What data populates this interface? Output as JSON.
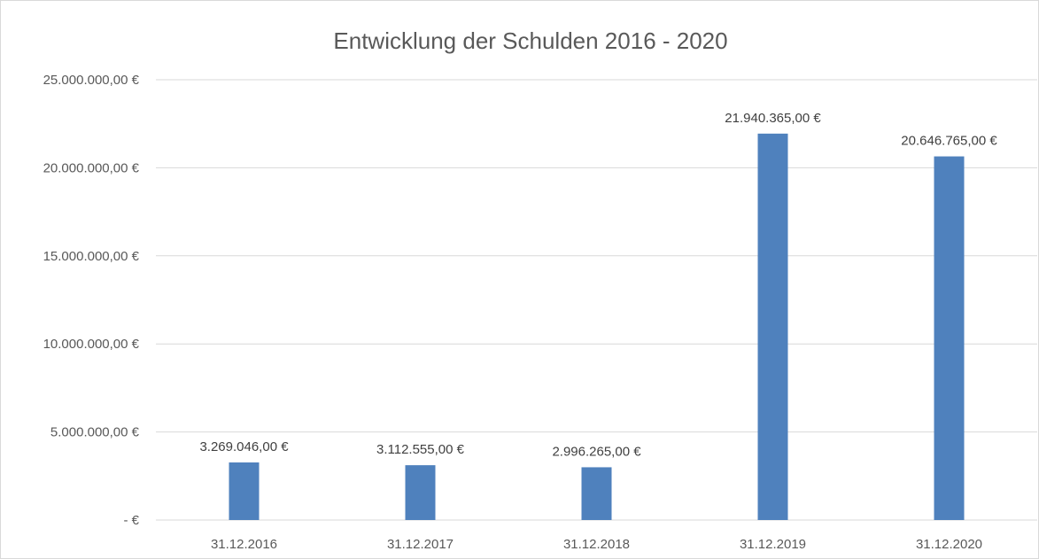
{
  "chart_data": {
    "type": "bar",
    "title": "Entwicklung der Schulden 2016 - 2020",
    "xlabel": "",
    "ylabel": "",
    "categories": [
      "31.12.2016",
      "31.12.2017",
      "31.12.2018",
      "31.12.2019",
      "31.12.2020"
    ],
    "values": [
      3269046,
      3112555,
      2996265,
      21940365,
      20646765
    ],
    "value_labels": [
      "3.269.046,00 €",
      "3.112.555,00 €",
      "2.996.265,00 €",
      "21.940.365,00 €",
      "20.646.765,00 €"
    ],
    "ylim": [
      0,
      25000000
    ],
    "yticks": [
      0,
      5000000,
      10000000,
      15000000,
      20000000,
      25000000
    ],
    "ytick_labels": [
      "-   €",
      "5.000.000,00 €",
      "10.000.000,00 €",
      "15.000.000,00 €",
      "20.000.000,00 €",
      "25.000.000,00 €"
    ],
    "grid": true,
    "legend": "none",
    "bar_color": "#4f81bd",
    "grid_color": "#d9d9d9"
  }
}
